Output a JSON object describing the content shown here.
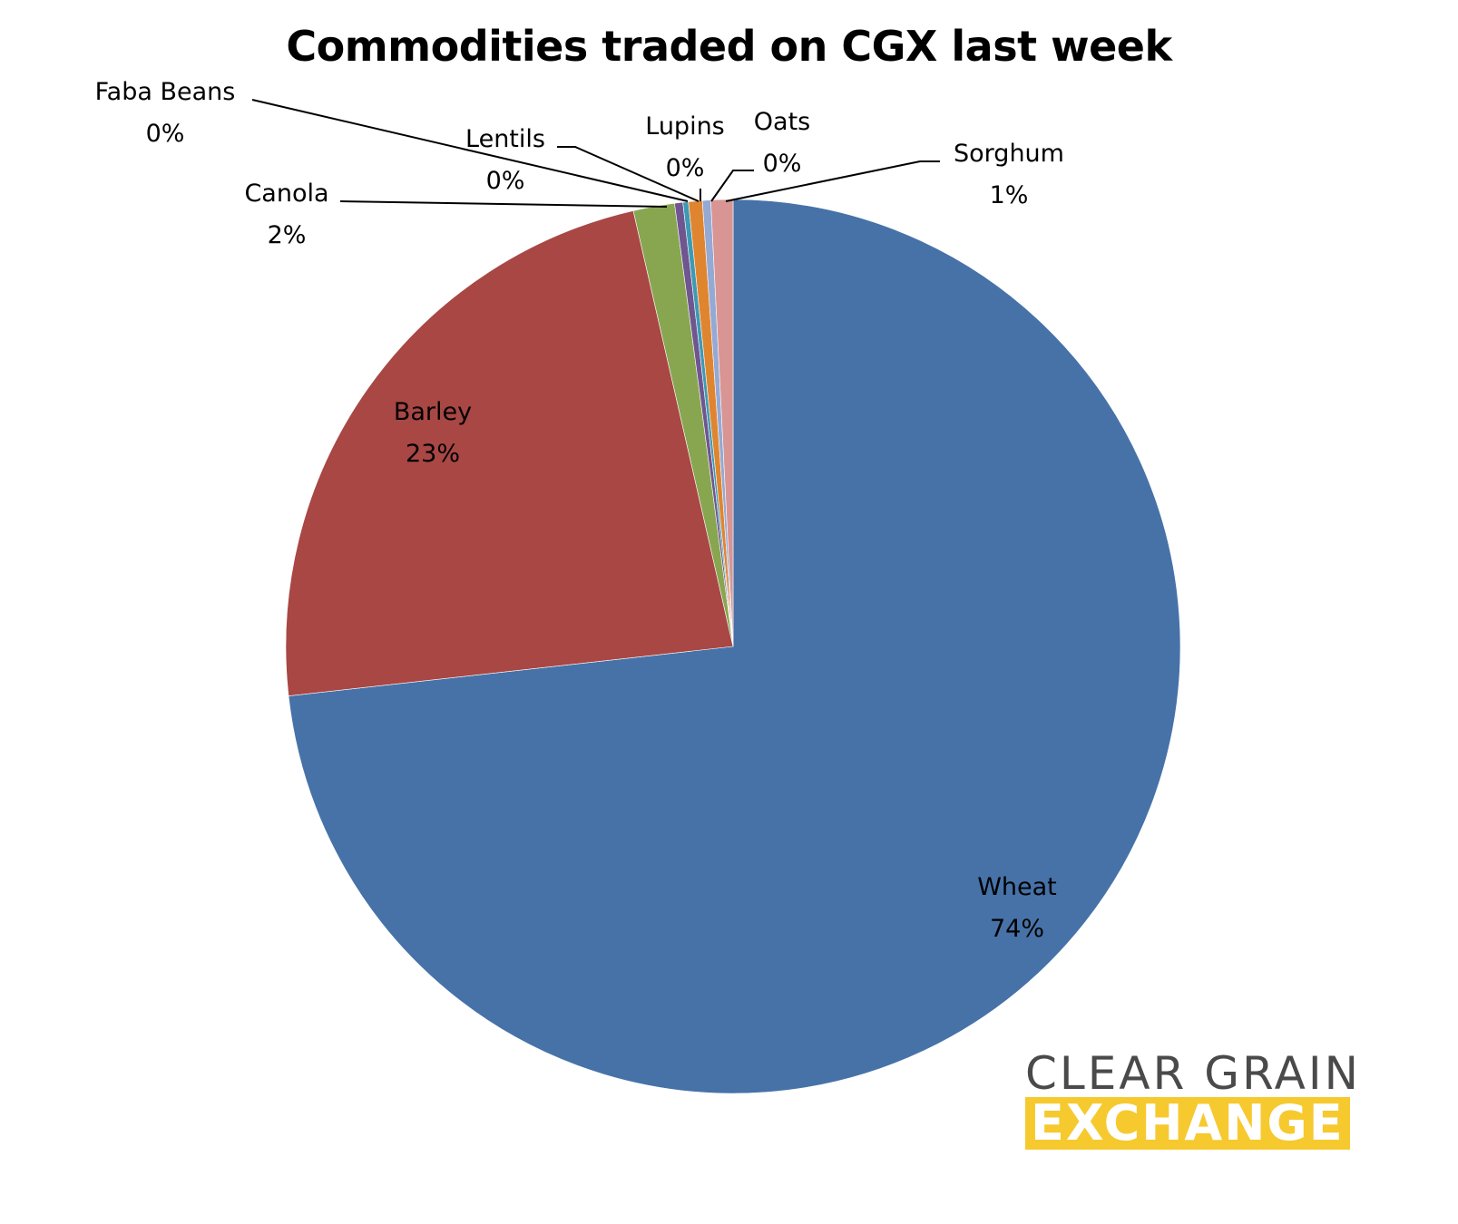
{
  "chart_data": {
    "type": "pie",
    "title": "Commodities traded on CGX last week",
    "slices": [
      {
        "label": "Wheat",
        "value": 73.6,
        "percent_label": "74%",
        "color": "#4672a8"
      },
      {
        "label": "Barley",
        "value": 23.3,
        "percent_label": "23%",
        "color": "#a84744"
      },
      {
        "label": "Canola",
        "value": 1.5,
        "percent_label": "2%",
        "color": "#88a650"
      },
      {
        "label": "Faba Beans",
        "value": 0.3,
        "percent_label": "0%",
        "color": "#6f5690"
      },
      {
        "label": "Lentils",
        "value": 0.2,
        "percent_label": "0%",
        "color": "#3e9ab3"
      },
      {
        "label": "Lupins",
        "value": 0.5,
        "percent_label": "0%",
        "color": "#e0852f"
      },
      {
        "label": "Oats",
        "value": 0.3,
        "percent_label": "0%",
        "color": "#94a9d4"
      },
      {
        "label": "Sorghum",
        "value": 0.8,
        "percent_label": "1%",
        "color": "#d99593"
      }
    ],
    "start_angle": "12 o'clock",
    "direction": "clockwise",
    "legend": "none",
    "data_labels": "category name and percentage"
  },
  "logo": {
    "line1": "CLEAR GRAIN",
    "line2": "EXCHANGE",
    "line1_color": "#4a4a4a",
    "line2_background": "#f6c92f"
  }
}
